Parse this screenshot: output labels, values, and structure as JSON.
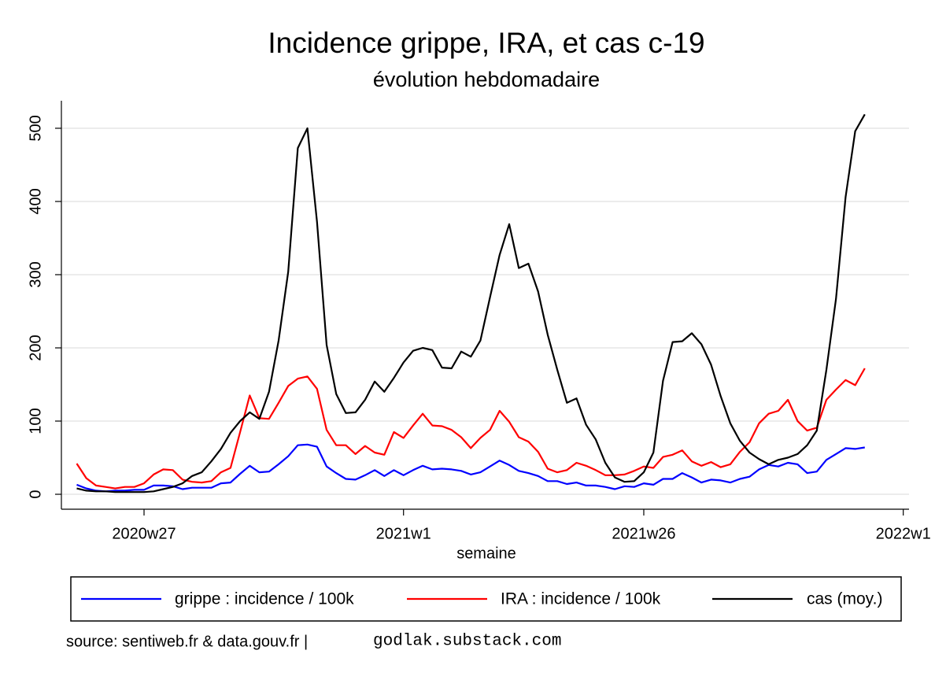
{
  "chart_data": {
    "type": "line",
    "title": "Incidence grippe, IRA, et cas c-19",
    "subtitle": "évolution hebdomadaire",
    "x_label": "semaine",
    "source": "source: sentiweb.fr & data.gouv.fr |",
    "credit": "godlak.substack.com",
    "x": [
      20,
      21,
      22,
      23,
      24,
      25,
      26,
      27,
      28,
      29,
      30,
      31,
      32,
      33,
      34,
      35,
      36,
      37,
      38,
      39,
      40,
      41,
      42,
      43,
      44,
      45,
      46,
      47,
      48,
      49,
      50,
      51,
      52,
      53,
      54,
      55,
      56,
      57,
      58,
      59,
      60,
      61,
      62,
      63,
      64,
      65,
      66,
      67,
      68,
      69,
      70,
      71,
      72,
      73,
      74,
      75,
      76,
      77,
      78,
      79,
      80,
      81,
      82,
      83,
      84,
      85,
      86,
      87,
      88,
      89,
      90,
      91,
      92,
      93,
      94,
      95,
      96,
      97,
      98,
      99,
      100,
      101,
      102
    ],
    "xlim": [
      18.4,
      106.6
    ],
    "xticks": [
      {
        "value": 27,
        "label": "2020w27"
      },
      {
        "value": 54,
        "label": "2021w1"
      },
      {
        "value": 79,
        "label": "2021w26"
      },
      {
        "value": 106,
        "label": "2022w1"
      }
    ],
    "ylim": [
      -20.4,
      537.6
    ],
    "yticks": [
      0,
      100,
      200,
      300,
      400,
      500
    ],
    "grid": true,
    "legend": "bottom",
    "series": [
      {
        "name": "grippe : incidence / 100k",
        "color": "#0000ff",
        "values": [
          13,
          8,
          5,
          4,
          5,
          5,
          6,
          6,
          12,
          12,
          11,
          7,
          9,
          9,
          9,
          15,
          16,
          28,
          39,
          30,
          31,
          41,
          52,
          67,
          68,
          65,
          38,
          29,
          21,
          20,
          26,
          33,
          25,
          33,
          26,
          33,
          39,
          34,
          35,
          34,
          32,
          27,
          30,
          38,
          46,
          40,
          32,
          29,
          25,
          18,
          18,
          14,
          16,
          12,
          12,
          10,
          7,
          11,
          10,
          15,
          13,
          21,
          21,
          29,
          23,
          16,
          20,
          19,
          16,
          21,
          24,
          34,
          40,
          38,
          43,
          41,
          29,
          31,
          47,
          55,
          63,
          62,
          64
        ]
      },
      {
        "name": "IRA : incidence / 100k",
        "color": "#ff0000",
        "values": [
          42,
          22,
          12,
          10,
          8,
          10,
          10,
          15,
          27,
          34,
          33,
          20,
          17,
          16,
          18,
          30,
          36,
          85,
          135,
          104,
          103,
          125,
          148,
          158,
          161,
          144,
          88,
          67,
          67,
          55,
          66,
          57,
          54,
          85,
          77,
          94,
          110,
          94,
          93,
          88,
          78,
          63,
          77,
          88,
          114,
          99,
          78,
          72,
          58,
          35,
          30,
          33,
          43,
          39,
          33,
          26,
          26,
          27,
          32,
          38,
          36,
          51,
          54,
          60,
          45,
          39,
          44,
          37,
          41,
          58,
          71,
          97,
          110,
          114,
          129,
          100,
          87,
          91,
          129,
          143,
          156,
          149,
          172
        ]
      },
      {
        "name": "cas (moy.)",
        "color": "#000000",
        "values": [
          8,
          5,
          4,
          4,
          3,
          3,
          3,
          3,
          4,
          7,
          10,
          15,
          25,
          30,
          45,
          62,
          84,
          100,
          112,
          103,
          140,
          210,
          304,
          473,
          500,
          372,
          204,
          137,
          111,
          112,
          129,
          154,
          140,
          159,
          180,
          196,
          200,
          197,
          173,
          172,
          195,
          188,
          210,
          269,
          327,
          369,
          309,
          315,
          277,
          218,
          170,
          125,
          131,
          95,
          75,
          43,
          23,
          17,
          18,
          30,
          57,
          155,
          208,
          209,
          220,
          205,
          177,
          134,
          97,
          73,
          57,
          48,
          41,
          47,
          50,
          55,
          67,
          87,
          170,
          267,
          406,
          496,
          519
        ]
      }
    ]
  }
}
